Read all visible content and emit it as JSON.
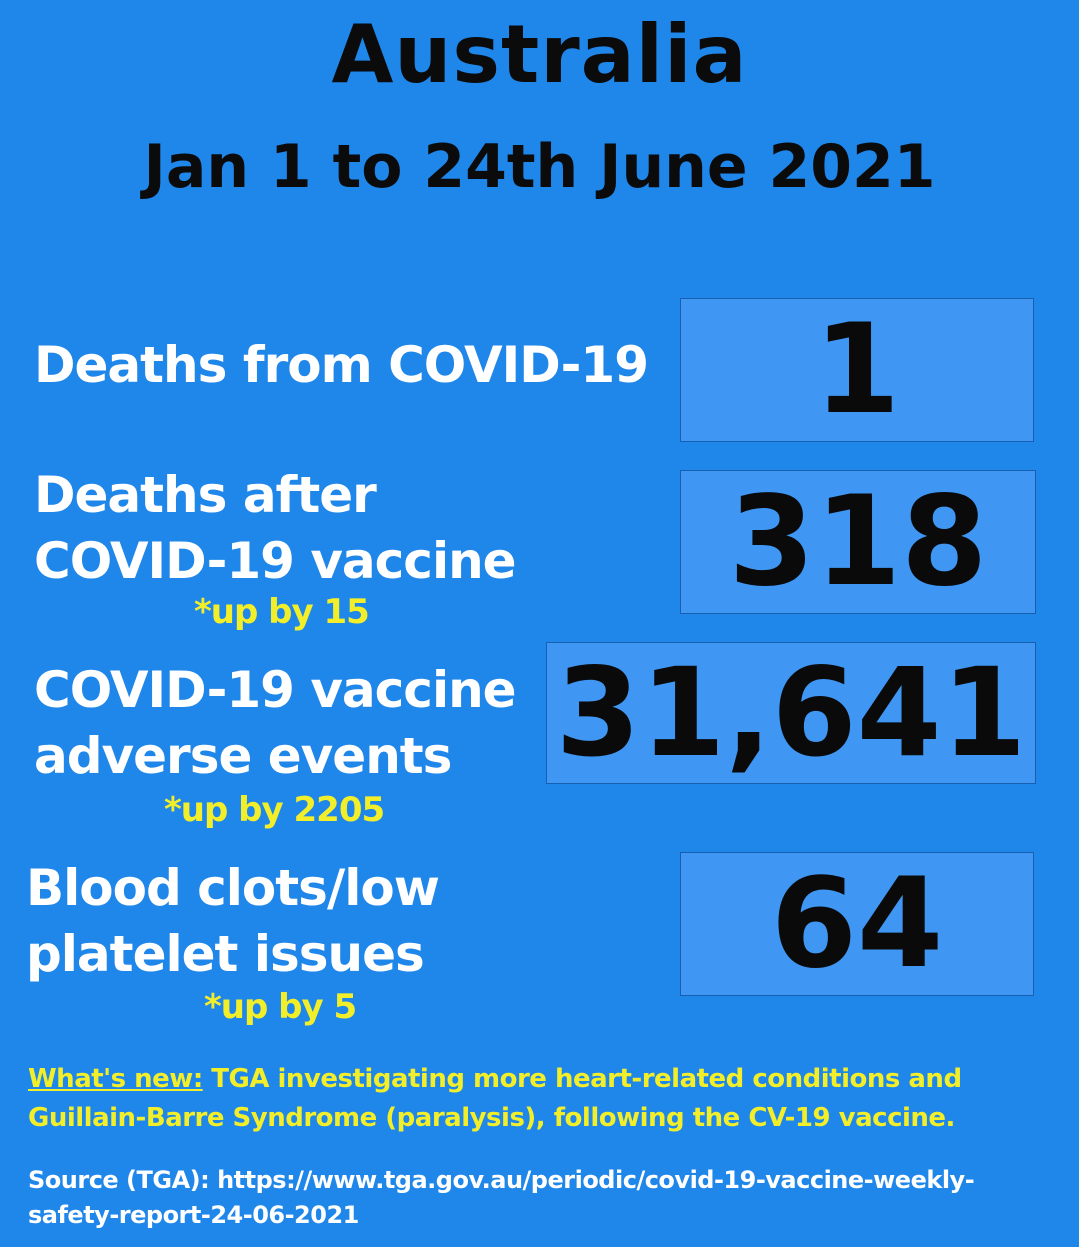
{
  "header": {
    "title": "Australia",
    "subtitle": "Jan 1 to 24th June 2021"
  },
  "stats": [
    {
      "label_lines": [
        "Deaths from COVID-19"
      ],
      "value": "1",
      "note": ""
    },
    {
      "label_lines": [
        "Deaths after",
        "COVID-19 vaccine"
      ],
      "value": "318",
      "note": "*up by 15"
    },
    {
      "label_lines": [
        "COVID-19 vaccine",
        "adverse events"
      ],
      "value": "31,641",
      "note": "*up by 2205"
    },
    {
      "label_lines": [
        "Blood clots/low",
        "platelet issues"
      ],
      "value": "64",
      "note": "*up by 5"
    }
  ],
  "footer": {
    "whats_new_label": "What's new:",
    "whats_new_text": " TGA investigating more heart-related conditions and Guillain-Barre Syndrome (paralysis), following the CV-19 vaccine.",
    "source_text": "Source (TGA): https://www.tga.gov.au/periodic/covid-19-vaccine-weekly-safety-report-24-06-2021"
  },
  "colors": {
    "background": "#1f86ea",
    "box": "#3f97f3",
    "note": "#f2ee2a",
    "label": "#ffffff",
    "title": "#0b0b0b"
  }
}
